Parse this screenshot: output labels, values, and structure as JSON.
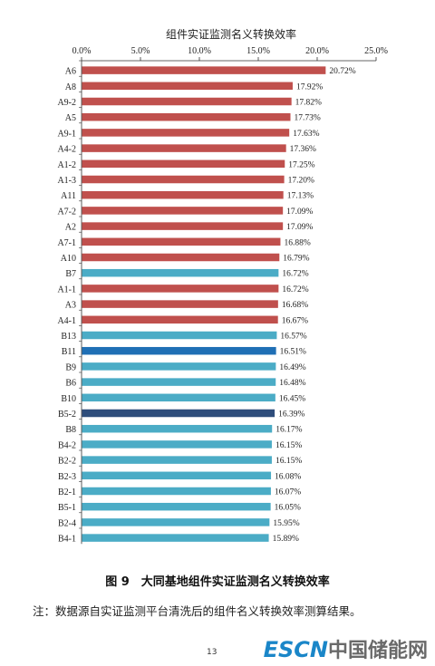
{
  "chart_data": {
    "type": "bar",
    "orientation": "horizontal",
    "title": "组件实证监测名义转换效率",
    "xaxis_position": "top",
    "xlim": [
      0,
      25
    ],
    "xticks": [
      "0.0%",
      "5.0%",
      "10.0%",
      "15.0%",
      "20.0%",
      "25.0%"
    ],
    "grid": false,
    "categories": [
      "A6",
      "A8",
      "A9-2",
      "A5",
      "A9-1",
      "A4-2",
      "A1-2",
      "A1-3",
      "A11",
      "A7-2",
      "A2",
      "A7-1",
      "A10",
      "B7",
      "A1-1",
      "A3",
      "A4-1",
      "B13",
      "B11",
      "B9",
      "B6",
      "B10",
      "B5-2",
      "B8",
      "B4-2",
      "B2-2",
      "B2-3",
      "B2-1",
      "B5-1",
      "B2-4",
      "B4-1"
    ],
    "values": [
      20.72,
      17.92,
      17.82,
      17.73,
      17.63,
      17.36,
      17.25,
      17.2,
      17.13,
      17.09,
      17.09,
      16.88,
      16.79,
      16.72,
      16.72,
      16.68,
      16.67,
      16.57,
      16.51,
      16.49,
      16.48,
      16.45,
      16.39,
      16.17,
      16.15,
      16.15,
      16.08,
      16.07,
      16.05,
      15.95,
      15.89
    ],
    "value_labels": [
      "20.72%",
      "17.92%",
      "17.82%",
      "17.73%",
      "17.63%",
      "17.36%",
      "17.25%",
      "17.20%",
      "17.13%",
      "17.09%",
      "17.09%",
      "16.88%",
      "16.79%",
      "16.72%",
      "16.72%",
      "16.68%",
      "16.67%",
      "16.57%",
      "16.51%",
      "16.49%",
      "16.48%",
      "16.45%",
      "16.39%",
      "16.17%",
      "16.15%",
      "16.15%",
      "16.08%",
      "16.07%",
      "16.05%",
      "15.95%",
      "15.89%"
    ],
    "colors": {
      "A": "#c0504d",
      "B": "#4bacc6",
      "B11": "#1f6fb5",
      "B5-2": "#2e4d7b"
    }
  },
  "caption": "图 9　大同基地组件实证监测名义转换效率",
  "note": "注：数据源自实证监测平台清洗后的组件名义转换效率测算结果。",
  "page_number": "13",
  "watermark": {
    "latin": "ESCN",
    "chinese": "中国储能网"
  }
}
